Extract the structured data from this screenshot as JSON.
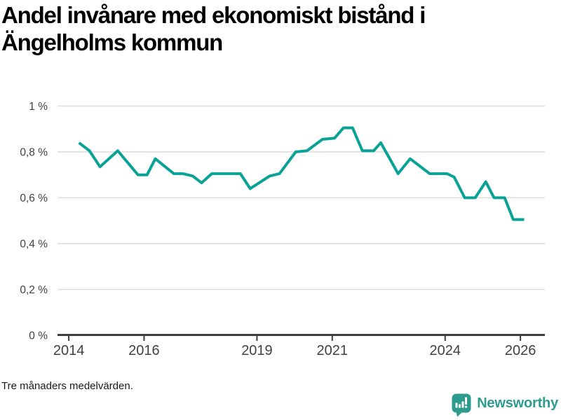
{
  "header": {
    "title": "Andel invånare med ekonomiskt bistånd i Ängelholms kommun"
  },
  "chart_data": {
    "type": "line",
    "title": "Andel invånare med ekonomiskt bistånd i Ängelholms kommun",
    "xlabel": "",
    "ylabel": "",
    "unit": "%",
    "grid": true,
    "xlim": [
      2013.7,
      2026.65
    ],
    "ylim": [
      0,
      1
    ],
    "x_ticks": [
      {
        "value": 2014,
        "label": "2014"
      },
      {
        "value": 2016,
        "label": "2016"
      },
      {
        "value": 2019,
        "label": "2019"
      },
      {
        "value": 2021,
        "label": "2021"
      },
      {
        "value": 2024,
        "label": "2024"
      },
      {
        "value": 2026,
        "label": "2026"
      }
    ],
    "y_ticks": [
      {
        "value": 0,
        "label": "0 %"
      },
      {
        "value": 0.2,
        "label": "0,2 %"
      },
      {
        "value": 0.4,
        "label": "0,4 %"
      },
      {
        "value": 0.6,
        "label": "0,6 %"
      },
      {
        "value": 0.8,
        "label": "0,8 %"
      },
      {
        "value": 1,
        "label": "1 %"
      }
    ],
    "colors": {
      "line": "#0aa296",
      "grid": "#dcdcdc",
      "axis": "#3f3f3f",
      "tick_label": "#414141"
    },
    "series": [
      {
        "name": "Andel invånare med ekonomiskt bistånd",
        "points": [
          [
            2014.27,
            0.84
          ],
          [
            2014.55,
            0.805
          ],
          [
            2014.83,
            0.735
          ],
          [
            2015.3,
            0.805
          ],
          [
            2015.84,
            0.7
          ],
          [
            2016.08,
            0.7
          ],
          [
            2016.3,
            0.77
          ],
          [
            2016.79,
            0.705
          ],
          [
            2017.03,
            0.705
          ],
          [
            2017.29,
            0.695
          ],
          [
            2017.53,
            0.665
          ],
          [
            2017.8,
            0.705
          ],
          [
            2018.56,
            0.705
          ],
          [
            2018.82,
            0.64
          ],
          [
            2019.34,
            0.695
          ],
          [
            2019.6,
            0.705
          ],
          [
            2020.03,
            0.8
          ],
          [
            2020.33,
            0.805
          ],
          [
            2020.74,
            0.855
          ],
          [
            2021.06,
            0.86
          ],
          [
            2021.3,
            0.905
          ],
          [
            2021.54,
            0.905
          ],
          [
            2021.8,
            0.805
          ],
          [
            2022.1,
            0.805
          ],
          [
            2022.29,
            0.84
          ],
          [
            2022.75,
            0.705
          ],
          [
            2023.07,
            0.77
          ],
          [
            2023.59,
            0.705
          ],
          [
            2024.05,
            0.705
          ],
          [
            2024.24,
            0.69
          ],
          [
            2024.52,
            0.6
          ],
          [
            2024.8,
            0.6
          ],
          [
            2025.08,
            0.67
          ],
          [
            2025.3,
            0.6
          ],
          [
            2025.58,
            0.6
          ],
          [
            2025.81,
            0.505
          ],
          [
            2026.1,
            0.505
          ]
        ]
      }
    ]
  },
  "footer": {
    "note": "Tre månaders medelvärden."
  },
  "branding": {
    "name": "Newsworthy",
    "color": "#2e9b8f",
    "icon": "bar-chart-speech-bubble-icon"
  }
}
